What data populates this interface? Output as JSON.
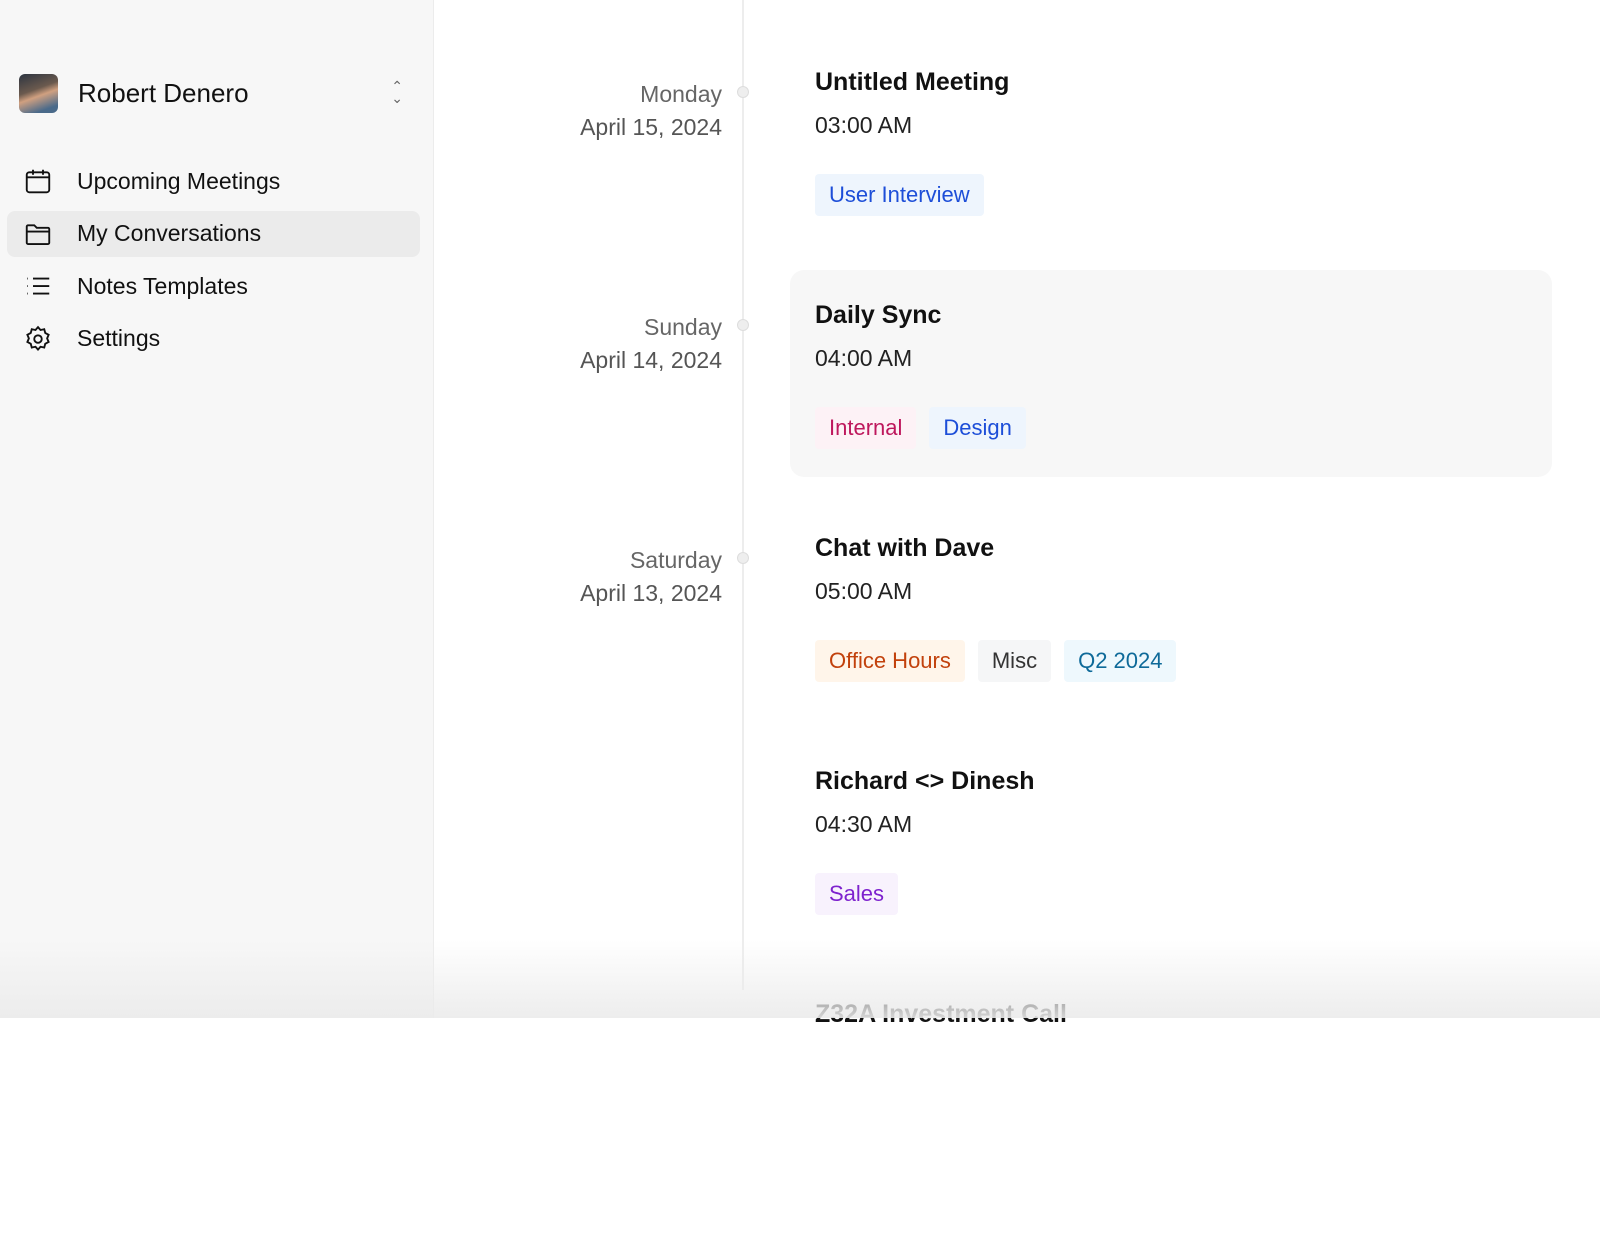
{
  "sidebar": {
    "user": {
      "name": "Robert Denero"
    },
    "items": [
      {
        "label": "Upcoming Meetings",
        "icon": "calendar-icon"
      },
      {
        "label": "My Conversations",
        "icon": "folder-icon",
        "active": true
      },
      {
        "label": "Notes Templates",
        "icon": "list-icon"
      },
      {
        "label": "Settings",
        "icon": "gear-icon"
      }
    ]
  },
  "entries": [
    {
      "day": "Monday",
      "date": "April 15, 2024",
      "title": "Untitled Meeting",
      "time": "03:00 AM",
      "tags": [
        {
          "label": "User Interview",
          "color": "#1d4ed8",
          "bg": "#eef5fd"
        }
      ]
    },
    {
      "day": "Sunday",
      "date": "April 14, 2024",
      "title": "Daily Sync",
      "time": "04:00 AM",
      "tags": [
        {
          "label": "Internal",
          "color": "#be185d",
          "bg": "#fdf2f6"
        },
        {
          "label": "Design",
          "color": "#1d4ed8",
          "bg": "#eef5fd"
        }
      ]
    },
    {
      "day": "Saturday",
      "date": "April 13, 2024",
      "title": "Chat with Dave",
      "time": "05:00 AM",
      "tags": [
        {
          "label": "Office Hours",
          "color": "#c2410c",
          "bg": "#fff5ea"
        },
        {
          "label": "Misc",
          "color": "#333333",
          "bg": "#f5f6f7"
        },
        {
          "label": "Q2 2024",
          "color": "#0e6a99",
          "bg": "#eef8fd"
        }
      ]
    },
    {
      "day": "",
      "date": "",
      "title": "Richard <> Dinesh",
      "time": "04:30 AM",
      "tags": [
        {
          "label": "Sales",
          "color": "#7e22ce",
          "bg": "#f8f2fd"
        }
      ]
    },
    {
      "day": "",
      "date": "",
      "title": "Z32A Investment Call",
      "time": "",
      "tags": []
    }
  ]
}
